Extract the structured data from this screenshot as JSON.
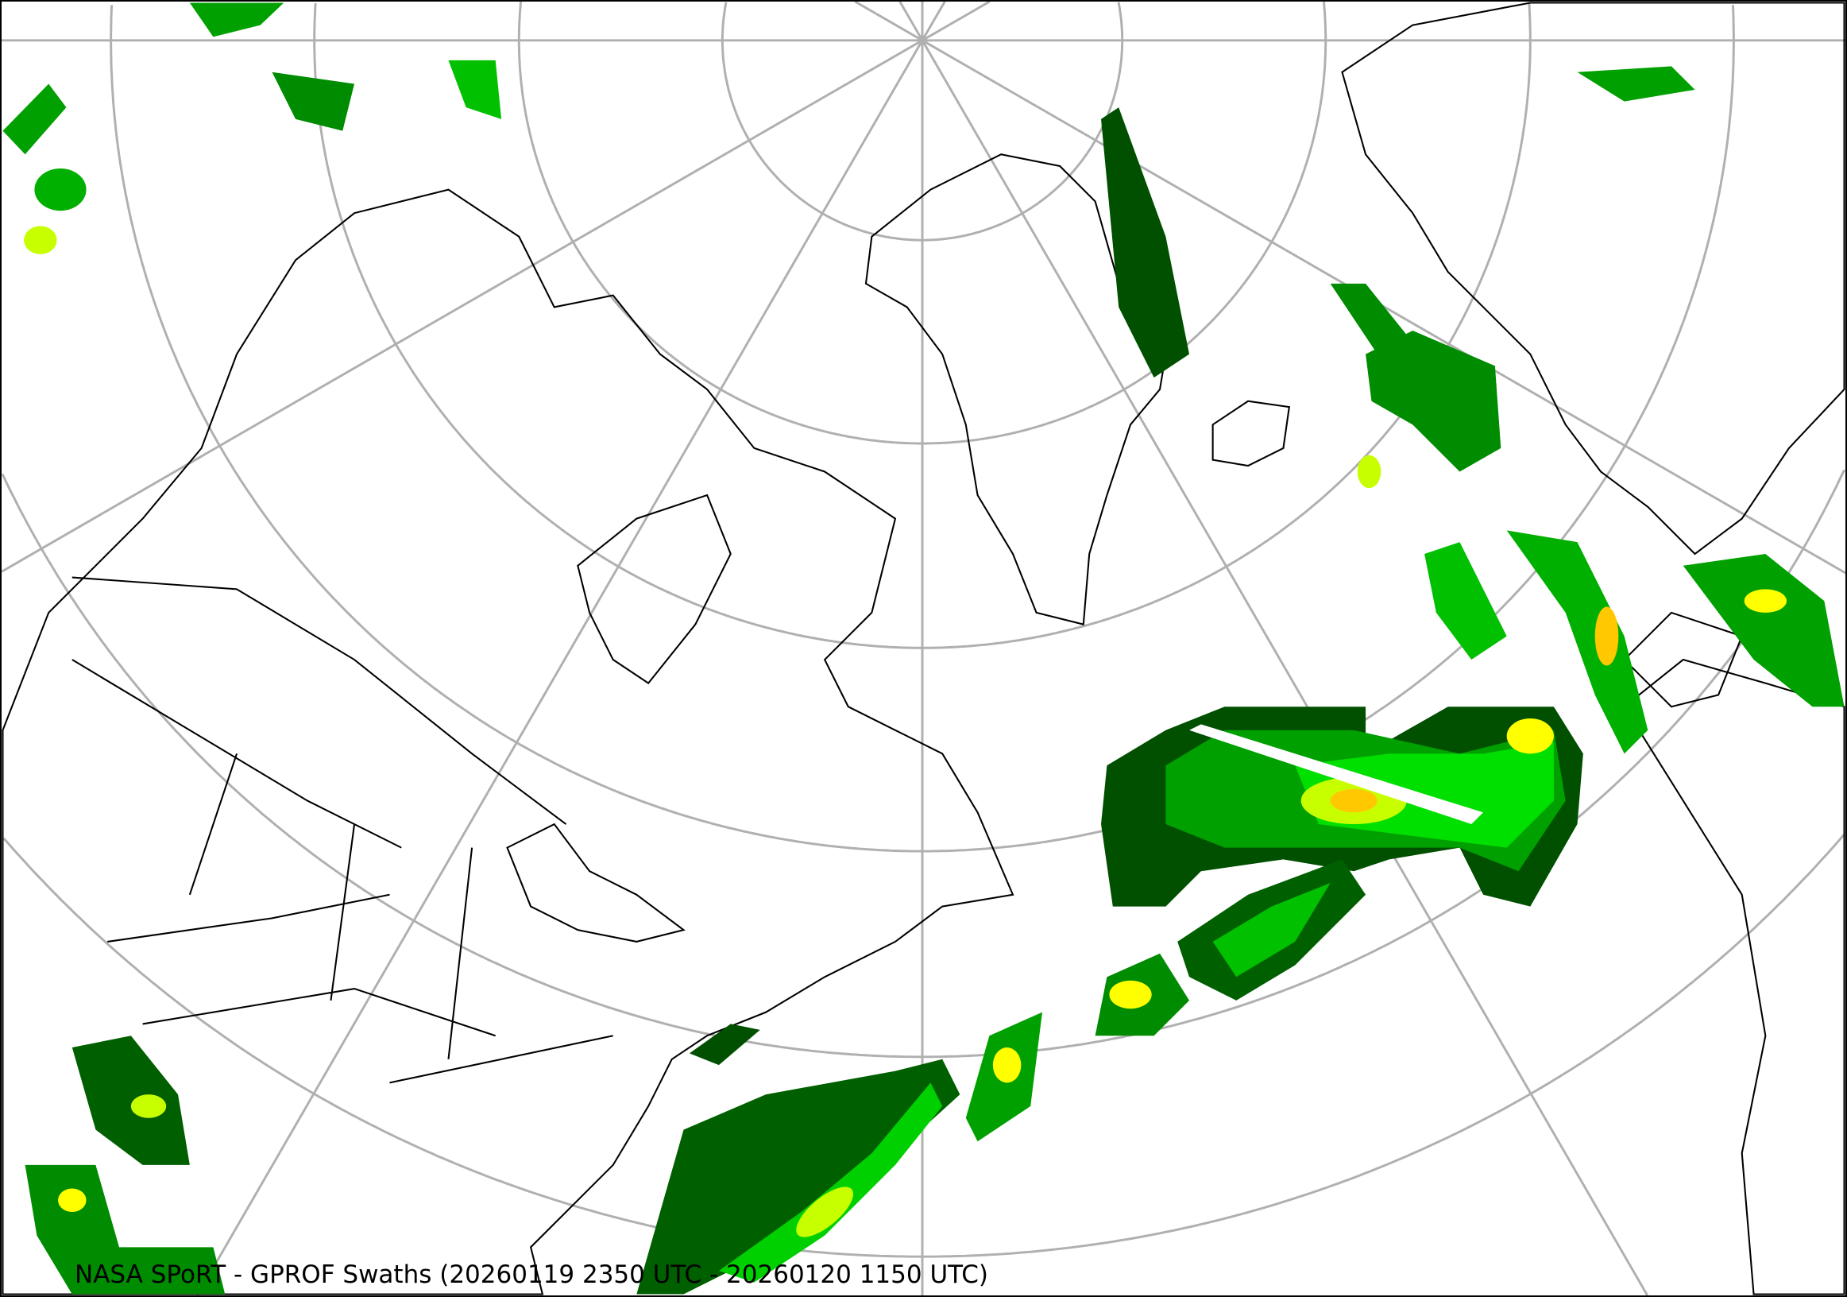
{
  "map": {
    "title": "NASA SPoRT - GPROF Swaths (20260119 2350 UTC - 20260120 1150 UTC)",
    "projection": "north-polar-stereographic",
    "graticule_color": "#b0b0b0",
    "coastline_color": "#000000",
    "precip_colors": [
      "#005000",
      "#008c00",
      "#00c800",
      "#00ff00",
      "#c8ff00",
      "#ffff00",
      "#ffc800",
      "#ff7000"
    ]
  }
}
